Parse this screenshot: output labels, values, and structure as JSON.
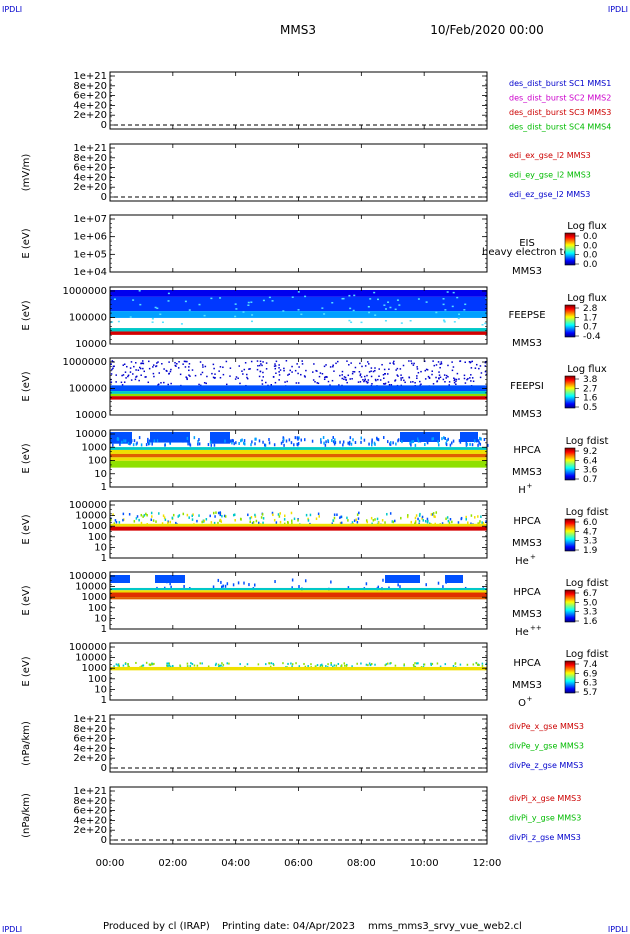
{
  "header": {
    "corner_tl": "IPDLI",
    "corner_tr": "IPDLI",
    "spacecraft": "MMS3",
    "datetime": "10/Feb/2020 00:00"
  },
  "footer": {
    "produced_by": "Produced by cl (IRAP)",
    "printing_date": "Printing date: 04/Apr/2023",
    "script_name": "mms_mms3_srvy_vue_web2.cl",
    "corner_bl": "IPDLI",
    "corner_br": "IPDLI"
  },
  "colors": {
    "mms1": "#0000cc",
    "mms2": "#cc00cc",
    "mms3": "#cc0000",
    "mms4": "#00bb00",
    "dashed_zero": "#000000",
    "red_band": "#d40000",
    "green_band": "#8fe000"
  },
  "chart_data": [
    {
      "type": "line",
      "yticks": [
        "1e+21",
        "8e+20",
        "6e+20",
        "4e+20",
        "2e+20",
        "0"
      ],
      "ylabel": "",
      "legend": [
        {
          "text": "des_dist_burst SC1 MMS1",
          "color": "#0000cc"
        },
        {
          "text": "des_dist_burst SC2 MMS2",
          "color": "#cc00cc"
        },
        {
          "text": "des_dist_burst SC3 MMS3",
          "color": "#cc0000"
        },
        {
          "text": "des_dist_burst SC4 MMS4",
          "color": "#00bb00"
        }
      ]
    },
    {
      "type": "line",
      "yticks": [
        "1e+21",
        "8e+20",
        "6e+20",
        "4e+20",
        "2e+20",
        "0"
      ],
      "ylabel": "(mV/m)",
      "legend": [
        {
          "text": "edi_ex_gse_l2 MMS3",
          "color": "#cc0000"
        },
        {
          "text": "edi_ey_gse_l2 MMS3",
          "color": "#00bb00"
        },
        {
          "text": "edi_ez_gse_l2 MMS3",
          "color": "#0000cc"
        }
      ]
    },
    {
      "type": "heatmap",
      "yticks": [
        "1e+07",
        "1e+06",
        "1e+05",
        "1e+04"
      ],
      "ylabel": "E (eV)",
      "instrument": "EIS",
      "overlay": "heavy electron to",
      "sc": "MMS3",
      "species": "",
      "cbar_title": "Log flux",
      "cbar_ticks": [
        "0.0",
        "0.0",
        "0.0",
        "0.0"
      ],
      "fill": "none"
    },
    {
      "type": "heatmap",
      "yticks": [
        "1000000",
        "100000",
        "10000"
      ],
      "ylabel": "E (eV)",
      "instrument": "FEEPSE",
      "sc": "MMS3",
      "species": "",
      "cbar_title": "Log flux",
      "cbar_ticks": [
        "2.8",
        "1.7",
        "0.7",
        "-0.4"
      ],
      "fill": "feeps_e"
    },
    {
      "type": "heatmap",
      "yticks": [
        "1000000",
        "100000",
        "10000"
      ],
      "ylabel": "E (eV)",
      "instrument": "FEEPSI",
      "sc": "MMS3",
      "species": "",
      "cbar_title": "Log flux",
      "cbar_ticks": [
        "3.8",
        "2.7",
        "1.6",
        "0.5"
      ],
      "fill": "feeps_i"
    },
    {
      "type": "heatmap",
      "yticks": [
        "10000",
        "1000",
        "100",
        "10",
        "1"
      ],
      "ylabel": "E (eV)",
      "instrument": "HPCA",
      "sc": "MMS3",
      "species": "H",
      "species_sup": "+",
      "cbar_title": "Log fdist",
      "cbar_ticks": [
        "9.2",
        "6.4",
        "3.6",
        "0.7"
      ],
      "fill": "hpca_h"
    },
    {
      "type": "heatmap",
      "yticks": [
        "100000",
        "10000",
        "1000",
        "100",
        "10",
        "1"
      ],
      "ylabel": "E (eV)",
      "instrument": "HPCA",
      "sc": "MMS3",
      "species": "He",
      "species_sup": "+",
      "cbar_title": "Log fdist",
      "cbar_ticks": [
        "6.0",
        "4.7",
        "3.3",
        "1.9"
      ],
      "fill": "hpca_hep"
    },
    {
      "type": "heatmap",
      "yticks": [
        "100000",
        "10000",
        "1000",
        "100",
        "10",
        "1"
      ],
      "ylabel": "E (eV)",
      "instrument": "HPCA",
      "sc": "MMS3",
      "species": "He",
      "species_sup": "++",
      "cbar_title": "Log fdist",
      "cbar_ticks": [
        "6.7",
        "5.0",
        "3.3",
        "1.6"
      ],
      "fill": "hpca_hepp"
    },
    {
      "type": "heatmap",
      "yticks": [
        "100000",
        "10000",
        "1000",
        "100",
        "10",
        "1"
      ],
      "ylabel": "E (eV)",
      "instrument": "HPCA",
      "sc": "MMS3",
      "species": "O",
      "species_sup": "+",
      "cbar_title": "Log fdist",
      "cbar_ticks": [
        "7.4",
        "6.9",
        "6.3",
        "5.7"
      ],
      "fill": "hpca_o"
    },
    {
      "type": "line",
      "yticks": [
        "1e+21",
        "8e+20",
        "6e+20",
        "4e+20",
        "2e+20",
        "0"
      ],
      "ylabel": "(nPa/km)",
      "legend": [
        {
          "text": "divPe_x_gse MMS3",
          "color": "#cc0000"
        },
        {
          "text": "divPe_y_gse MMS3",
          "color": "#00bb00"
        },
        {
          "text": "divPe_z_gse MMS3",
          "color": "#0000cc"
        }
      ]
    },
    {
      "type": "line",
      "yticks": [
        "1e+21",
        "8e+20",
        "6e+20",
        "4e+20",
        "2e+20",
        "0"
      ],
      "ylabel": "(nPa/km)",
      "legend": [
        {
          "text": "divPi_x_gse MMS3",
          "color": "#cc0000"
        },
        {
          "text": "divPi_y_gse MMS3",
          "color": "#00bb00"
        },
        {
          "text": "divPi_z_gse MMS3",
          "color": "#0000cc"
        }
      ]
    }
  ],
  "xaxis": {
    "ticks": [
      "00:00",
      "02:00",
      "04:00",
      "06:00",
      "08:00",
      "10:00",
      "12:00"
    ]
  }
}
